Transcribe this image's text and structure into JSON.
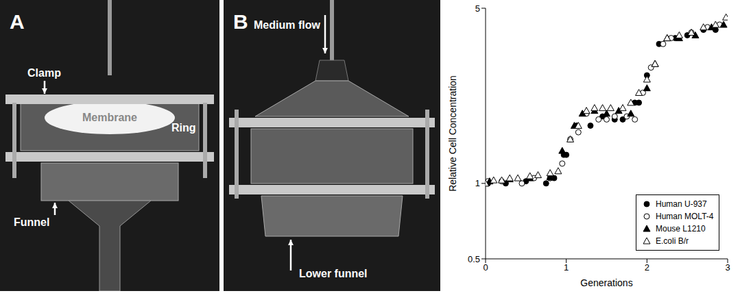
{
  "panels": [
    {
      "letter": "A",
      "labels": [
        "Clamp",
        "Membrane",
        "Ring",
        "Funnel"
      ]
    },
    {
      "letter": "B",
      "labels": [
        "Medium flow",
        "Lower funnel"
      ]
    }
  ],
  "chart_data": {
    "type": "scatter",
    "x_label": "Generations",
    "y_label": "Relative Cell Concentration",
    "log": "y",
    "grid": false,
    "legend": "lower right",
    "xlim": [
      0,
      3
    ],
    "xticks": [
      0,
      1,
      2,
      3
    ],
    "ylim": [
      0.5,
      5
    ],
    "yticks": [
      0.5,
      1,
      5
    ],
    "series": [
      {
        "name": "Human U-937",
        "color": "#000000",
        "marker": "circle",
        "x": [
          0.03,
          0.25,
          0.5,
          0.75,
          0.8,
          0.85,
          0.97,
          1.0,
          1.13,
          1.3,
          1.45,
          1.6,
          1.7,
          1.85,
          1.9,
          2.0,
          2.15,
          2.35,
          2.5,
          2.7,
          2.85
        ],
        "values": [
          1.0,
          1.0,
          1.02,
          1.0,
          1.05,
          1.05,
          1.3,
          1.3,
          1.7,
          1.7,
          1.85,
          1.8,
          1.8,
          2.1,
          2.1,
          2.7,
          3.6,
          3.8,
          3.9,
          4.1,
          4.1
        ]
      },
      {
        "name": "Human MOLT-4",
        "color": "#000000",
        "marker": "open_circle",
        "x": [
          0.03,
          0.2,
          0.45,
          0.6,
          0.8,
          0.95,
          1.05,
          1.15,
          1.25,
          1.4,
          1.5,
          1.6,
          1.75,
          1.85,
          1.95,
          2.05,
          2.2,
          2.3,
          2.55,
          2.75,
          2.9
        ],
        "values": [
          1.02,
          1.02,
          1.0,
          1.05,
          1.05,
          1.2,
          1.5,
          1.6,
          1.9,
          1.8,
          1.8,
          1.85,
          1.85,
          1.8,
          2.3,
          2.9,
          3.6,
          3.8,
          4.0,
          4.2,
          4.3
        ]
      },
      {
        "name": "Mouse L1210",
        "color": "#000000",
        "marker": "triangle",
        "x": [
          0.05,
          0.3,
          0.55,
          0.8,
          0.95,
          1.1,
          1.2,
          1.35,
          1.5,
          1.65,
          1.8,
          2.0,
          2.1,
          2.25,
          2.4,
          2.6,
          2.8,
          2.95
        ],
        "values": [
          1.02,
          1.04,
          1.05,
          1.06,
          1.35,
          1.7,
          1.9,
          1.95,
          1.9,
          1.95,
          1.9,
          2.4,
          3.0,
          3.8,
          3.8,
          3.9,
          4.2,
          4.3
        ]
      },
      {
        "name": "E.coli B/r",
        "color": "#000000",
        "marker": "open_triangle",
        "x": [
          0.0,
          0.1,
          0.2,
          0.3,
          0.4,
          0.55,
          0.65,
          0.8,
          0.9,
          1.05,
          1.15,
          1.25,
          1.35,
          1.45,
          1.55,
          1.7,
          1.8,
          1.9,
          2.0,
          2.1,
          2.25,
          2.4,
          2.55,
          2.7,
          2.85,
          2.98
        ],
        "values": [
          1.0,
          1.03,
          1.03,
          1.05,
          1.05,
          1.07,
          1.08,
          1.1,
          1.12,
          1.5,
          1.7,
          1.95,
          2.0,
          2.0,
          2.0,
          2.0,
          2.1,
          2.3,
          2.6,
          3.0,
          3.8,
          3.9,
          4.0,
          4.2,
          4.3,
          4.6
        ]
      }
    ]
  }
}
